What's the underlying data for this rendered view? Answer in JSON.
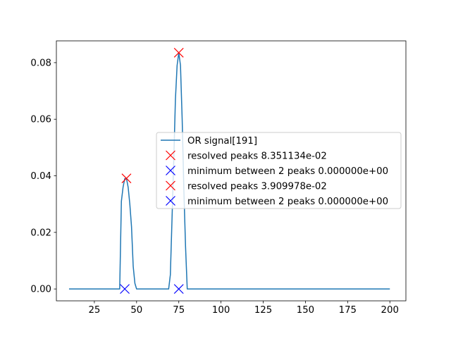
{
  "chart_data": {
    "type": "line",
    "title": "",
    "xlabel": "",
    "ylabel": "",
    "xlim": [
      2.5,
      209.5
    ],
    "ylim": [
      -0.0042,
      0.0877
    ],
    "xticks": [
      25,
      50,
      75,
      100,
      125,
      150,
      175,
      200
    ],
    "yticks": [
      0.0,
      0.02,
      0.04,
      0.06,
      0.08
    ],
    "ytick_labels": [
      "0.00",
      "0.02",
      "0.04",
      "0.06",
      "0.08"
    ],
    "grid": false,
    "legend_position": "center-right",
    "series": [
      {
        "name": "OR signal[191]",
        "color": "#1f77b4",
        "x": [
          10,
          40,
          41,
          42,
          43,
          44,
          45,
          46,
          47,
          48,
          49,
          50,
          69,
          70,
          71,
          72,
          73,
          74,
          75,
          76,
          77,
          78,
          79,
          80,
          81,
          200
        ],
        "y": [
          0.0,
          0.0,
          0.031,
          0.036,
          0.039,
          0.0391,
          0.036,
          0.03,
          0.022,
          0.008,
          0.002,
          0.0,
          0.0,
          0.005,
          0.025,
          0.045,
          0.067,
          0.079,
          0.0835,
          0.079,
          0.06,
          0.035,
          0.015,
          0.0,
          0.0,
          0.0
        ]
      }
    ],
    "markers": [
      {
        "name": "resolved peaks 8.351134e-02",
        "color": "#ff0000",
        "x": 75,
        "y": 0.08351134
      },
      {
        "name": "minimum between 2 peaks 0.000000e+00",
        "color": "#0000ff",
        "x": 75,
        "y": 0.0
      },
      {
        "name": "resolved peaks 3.909978e-02",
        "color": "#ff0000",
        "x": 44,
        "y": 0.03909978
      },
      {
        "name": "minimum between 2 peaks 0.000000e+00",
        "color": "#0000ff",
        "x": 43,
        "y": 0.0
      }
    ]
  }
}
